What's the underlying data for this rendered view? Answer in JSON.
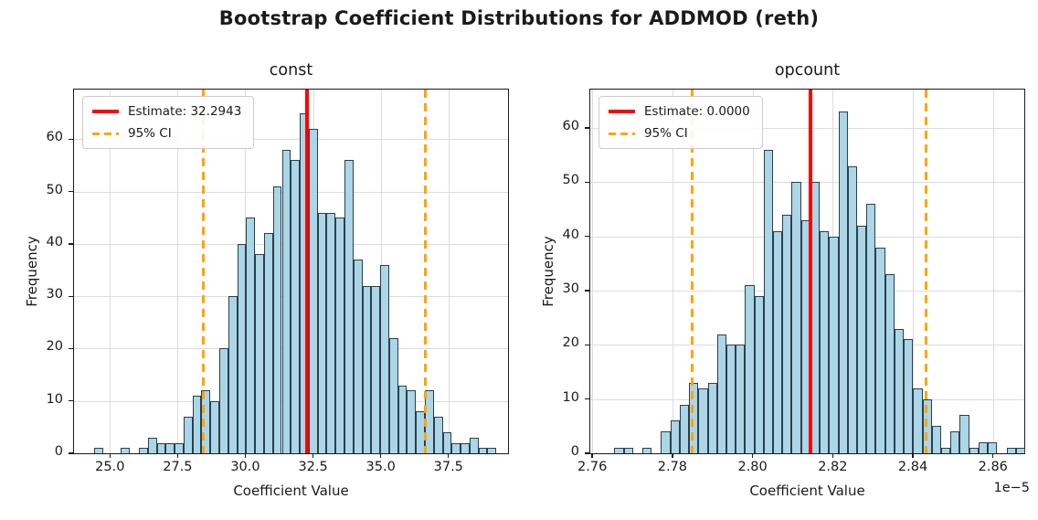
{
  "suptitle": "Bootstrap Coefficient Distributions for ADDMOD (reth)",
  "colors": {
    "bar_fill": "#aad6e8",
    "bar_edge": "#2e3e49",
    "estimate_line": "#ff0000",
    "ci_line": "#ffa500",
    "grid": "#dcdcdc",
    "spine": "#1a1a1a",
    "background": "#ffffff"
  },
  "chart_data": [
    {
      "type": "bar",
      "subtype": "histogram",
      "title": "const",
      "xlabel": "Coefficient Value",
      "ylabel": "Frequency",
      "legend": [
        "Estimate: 32.2943",
        "95% CI"
      ],
      "legend_position": "upper left",
      "grid": true,
      "estimate": 32.2943,
      "ci_lower": 28.45,
      "ci_upper": 36.66,
      "xlim": [
        23.674,
        39.7
      ],
      "ylim": [
        0,
        69.5
      ],
      "x_ticks": [
        25.0,
        27.5,
        30.0,
        32.5,
        35.0,
        37.5
      ],
      "x_tick_labels": [
        "25.0",
        "27.5",
        "30.0",
        "32.5",
        "35.0",
        "37.5"
      ],
      "y_ticks": [
        0,
        10,
        20,
        30,
        40,
        50,
        60
      ],
      "y_tick_labels": [
        "0",
        "10",
        "20",
        "30",
        "40",
        "50",
        "60"
      ],
      "offset_text": "",
      "bins_start": 24.42,
      "bin_width": 0.33,
      "counts": [
        1,
        0,
        0,
        1,
        0,
        1,
        3,
        2,
        2,
        2,
        7,
        11,
        12,
        10,
        20,
        30,
        40,
        45,
        38,
        42,
        51,
        58,
        56,
        65,
        62,
        46,
        46,
        45,
        56,
        37,
        32,
        32,
        36,
        22,
        13,
        12,
        8,
        12,
        7,
        4,
        2,
        2,
        3,
        1,
        1
      ]
    },
    {
      "type": "bar",
      "subtype": "histogram",
      "title": "opcount",
      "xlabel": "Coefficient Value",
      "ylabel": "Frequency",
      "legend": [
        "Estimate: 0.0000",
        "95% CI"
      ],
      "legend_position": "upper left",
      "grid": true,
      "estimate": 2.8145,
      "ci_lower": 2.785,
      "ci_upper": 2.8432,
      "xlim": [
        2.7595,
        2.8678
      ],
      "ylim": [
        0,
        67.1
      ],
      "x_ticks": [
        2.76,
        2.78,
        2.8,
        2.82,
        2.84,
        2.86
      ],
      "x_tick_labels": [
        "2.76",
        "2.78",
        "2.80",
        "2.82",
        "2.84",
        "2.86"
      ],
      "y_ticks": [
        0,
        10,
        20,
        30,
        40,
        50,
        60
      ],
      "y_tick_labels": [
        "0",
        "10",
        "20",
        "30",
        "40",
        "50",
        "60"
      ],
      "offset_text": "1e−5",
      "bins_start": 2.7655,
      "bin_width": 0.00233,
      "counts": [
        1,
        1,
        0,
        1,
        0,
        4,
        6,
        9,
        13,
        12,
        13,
        22,
        20,
        20,
        31,
        29,
        56,
        41,
        44,
        50,
        43,
        50,
        41,
        40,
        63,
        53,
        42,
        46,
        38,
        33,
        23,
        21,
        12,
        10,
        5,
        1,
        4,
        7,
        1,
        2,
        2,
        0,
        1,
        1
      ]
    }
  ]
}
